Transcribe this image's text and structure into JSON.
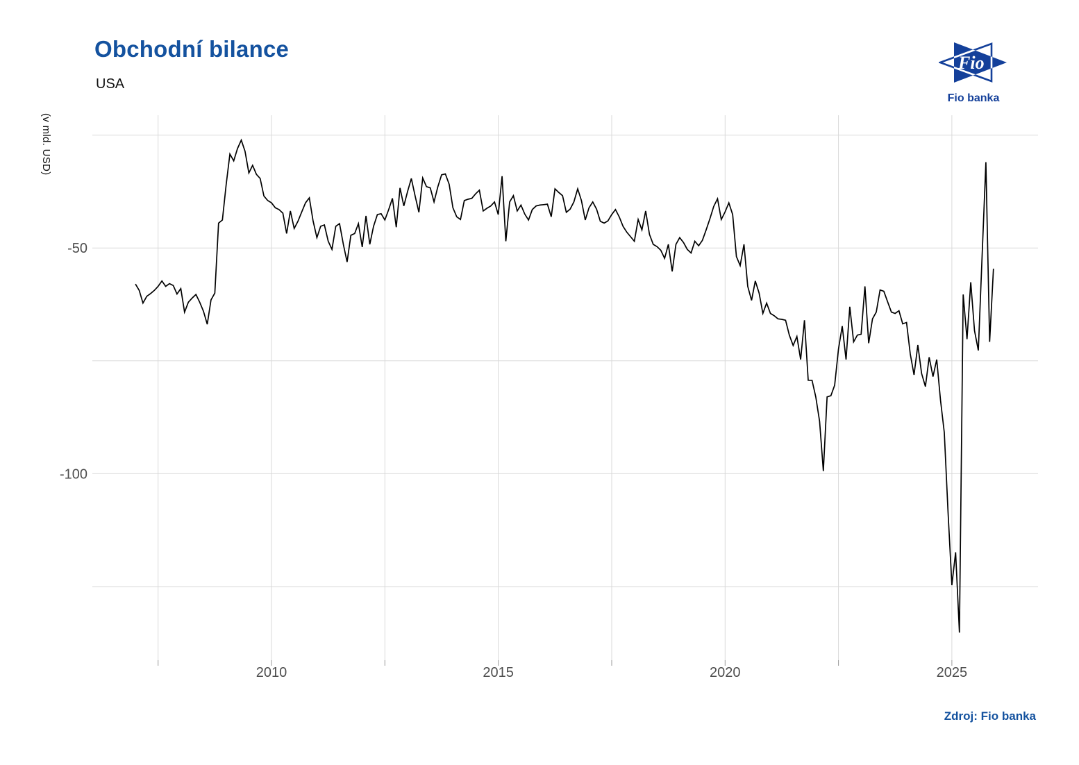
{
  "header": {
    "title": "Obchodní bilance",
    "subtitle": "USA"
  },
  "logo": {
    "text": "Fio",
    "caption": "Fio banka",
    "color": "#14409A"
  },
  "footer": {
    "source": "Zdroj: Fio banka"
  },
  "style": {
    "accent": "#14529F",
    "logo_navy": "#14409A",
    "axis_text": "#4d4d4d",
    "gridline": "#d9d9d9",
    "tick": "#9a9a9a",
    "line": "#000000",
    "background": "#ffffff"
  },
  "chart_data": {
    "type": "line",
    "title": "Obchodní bilance",
    "subtitle": "USA",
    "xlabel": "",
    "ylabel": "(v mld. USD)",
    "grid": true,
    "legend": "none",
    "xlim": [
      2006.05,
      2026.9
    ],
    "ylim": [
      -141.3,
      -20.6
    ],
    "x_ticks": [
      2010,
      2015,
      2020,
      2025
    ],
    "x_tick_labels": [
      "2010",
      "2015",
      "2020",
      "2025"
    ],
    "x_gridlines": [
      2007.5,
      2010,
      2012.5,
      2015,
      2017.5,
      2020,
      2022.5,
      2025
    ],
    "y_ticks": [
      -50,
      -100
    ],
    "y_tick_labels": [
      "-50",
      "-100"
    ],
    "y_gridlines": [
      -25,
      -50,
      -75,
      -100,
      -125
    ],
    "series": [
      {
        "name": "Obchodní bilance USA (mld. USD, měsíčně)",
        "frequency": "monthly",
        "start_year": 2007,
        "start_month": 1,
        "color": "#000000",
        "values": [
          -58.0,
          -59.4,
          -62.2,
          -60.7,
          -60.1,
          -59.4,
          -58.5,
          -57.3,
          -58.5,
          -57.9,
          -58.3,
          -60.2,
          -59.0,
          -64.2,
          -62.0,
          -61.1,
          -60.3,
          -62.0,
          -64.0,
          -66.9,
          -61.5,
          -60.0,
          -44.5,
          -43.8,
          -36.0,
          -29.2,
          -30.7,
          -28.0,
          -26.1,
          -28.6,
          -33.4,
          -31.7,
          -33.7,
          -34.6,
          -38.5,
          -39.5,
          -40.0,
          -41.1,
          -41.5,
          -42.3,
          -46.8,
          -41.8,
          -45.7,
          -44.1,
          -42.0,
          -40.0,
          -38.9,
          -44.0,
          -47.7,
          -45.2,
          -44.9,
          -48.5,
          -50.3,
          -45.2,
          -44.6,
          -49.2,
          -53.1,
          -47.2,
          -46.8,
          -44.6,
          -49.8,
          -42.9,
          -49.2,
          -45.2,
          -42.6,
          -42.4,
          -43.8,
          -41.5,
          -39.0,
          -45.4,
          -36.7,
          -40.7,
          -37.5,
          -34.6,
          -38.5,
          -42.1,
          -34.5,
          -36.4,
          -36.7,
          -39.8,
          -36.5,
          -33.8,
          -33.6,
          -35.9,
          -41.1,
          -43.1,
          -43.7,
          -39.5,
          -39.2,
          -39.0,
          -38.0,
          -37.2,
          -41.8,
          -41.2,
          -40.7,
          -39.8,
          -42.6,
          -34.1,
          -48.5,
          -39.8,
          -38.4,
          -41.8,
          -40.5,
          -42.5,
          -43.8,
          -41.5,
          -40.7,
          -40.5,
          -40.4,
          -40.3,
          -43.1,
          -36.9,
          -37.7,
          -38.4,
          -42.1,
          -41.4,
          -39.8,
          -36.9,
          -39.5,
          -43.8,
          -41.1,
          -39.8,
          -41.4,
          -44.1,
          -44.5,
          -44.0,
          -42.6,
          -41.5,
          -43.1,
          -45.2,
          -46.5,
          -47.5,
          -48.5,
          -43.7,
          -46.0,
          -41.8,
          -47.0,
          -49.2,
          -49.7,
          -50.5,
          -52.3,
          -49.2,
          -55.2,
          -49.2,
          -47.7,
          -48.8,
          -50.3,
          -51.1,
          -48.5,
          -49.5,
          -48.3,
          -46.0,
          -43.5,
          -40.8,
          -39.1,
          -43.7,
          -42.0,
          -40.0,
          -42.6,
          -51.9,
          -53.9,
          -49.2,
          -58.5,
          -61.6,
          -57.3,
          -60.0,
          -64.5,
          -62.2,
          -64.5,
          -65.0,
          -65.7,
          -65.8,
          -66.0,
          -69.3,
          -71.6,
          -69.6,
          -74.7,
          -66.0,
          -79.3,
          -79.3,
          -83.0,
          -88.4,
          -99.4,
          -83.0,
          -82.7,
          -80.4,
          -72.4,
          -67.3,
          -74.7,
          -63.0,
          -70.8,
          -69.3,
          -69.1,
          -58.5,
          -71.1,
          -65.7,
          -64.2,
          -59.3,
          -59.6,
          -61.9,
          -64.2,
          -64.5,
          -63.9,
          -66.8,
          -66.5,
          -73.5,
          -78.1,
          -71.5,
          -77.8,
          -80.7,
          -74.2,
          -78.5,
          -74.7,
          -83.8,
          -90.9,
          -108.5,
          -124.7,
          -117.4,
          -135.2,
          -60.3,
          -70.2,
          -57.6,
          -68.3,
          -72.7,
          -52.0,
          -31.0,
          -70.8,
          -54.6
        ]
      }
    ]
  }
}
